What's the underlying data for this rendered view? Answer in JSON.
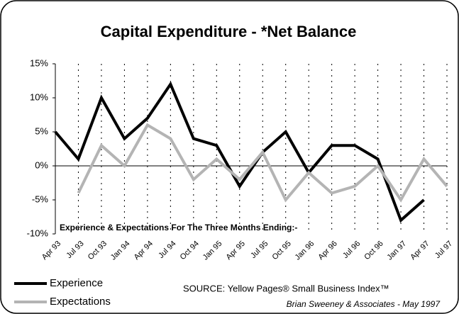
{
  "chart_data": {
    "type": "line",
    "title": "Capital Expenditure - *Net Balance",
    "annotation": "Experience & Expectations For The Three Months  Ending:-",
    "source": "SOURCE: Yellow Pages®  Small Business Index™",
    "credit": "Brian Sweeney & Associates - May 1997",
    "categories": [
      "Apr 93",
      "Jul 93",
      "Oct 93",
      "Jan 94",
      "Apr 94",
      "Jul 94",
      "Oct 94",
      "Jan 95",
      "Apr 95",
      "Jul 95",
      "Oct 95",
      "Jan 96",
      "Apr 96",
      "Jul 96",
      "Oct 96",
      "Jan 97",
      "Apr 97",
      "Jul 97"
    ],
    "series": [
      {
        "name": "Experience",
        "color": "#000000",
        "values": [
          5,
          1,
          10,
          4,
          7,
          12,
          4,
          3,
          -3,
          2,
          5,
          -1,
          3,
          3,
          1,
          -8,
          -5,
          null
        ]
      },
      {
        "name": "Expectations",
        "color": "#b4b4b4",
        "values": [
          null,
          -4,
          3,
          0,
          6,
          4,
          -2,
          1,
          -2,
          2,
          -5,
          -1,
          -4,
          -3,
          0,
          -5,
          1,
          -3
        ]
      }
    ],
    "ylim": [
      -10,
      15
    ],
    "yticks": [
      {
        "value": -10,
        "label": "-10%"
      },
      {
        "value": -5,
        "label": "-5%"
      },
      {
        "value": 0,
        "label": "0%"
      },
      {
        "value": 5,
        "label": "5%"
      },
      {
        "value": 10,
        "label": "10%"
      },
      {
        "value": 15,
        "label": "15%"
      }
    ],
    "legend": "bottom-left"
  }
}
